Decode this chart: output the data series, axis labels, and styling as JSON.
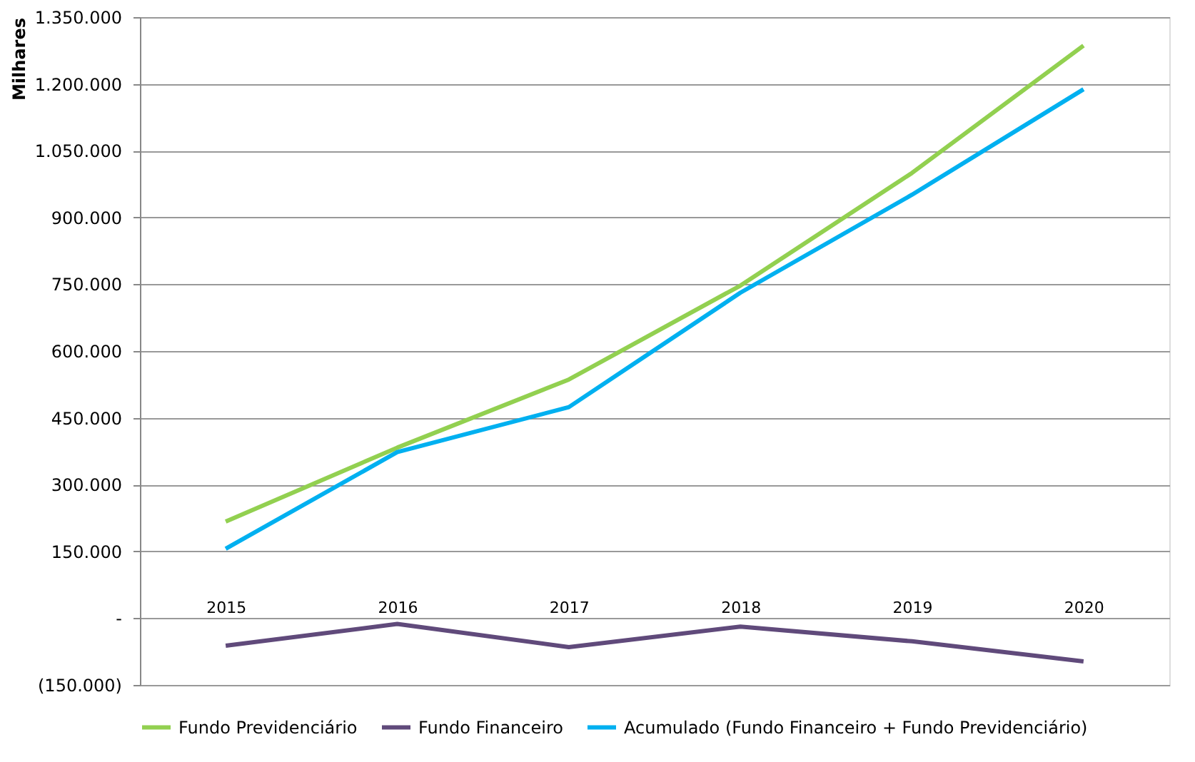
{
  "chart_data": {
    "type": "line",
    "ylabel": "Milhares",
    "categories": [
      "2015",
      "2016",
      "2017",
      "2018",
      "2019",
      "2020"
    ],
    "series": [
      {
        "name": "Fundo Previdenciário",
        "color": "#92d050",
        "values": [
          217000,
          383000,
          536000,
          747000,
          1000000,
          1286000
        ]
      },
      {
        "name": "Fundo Financeiro",
        "color": "#604a7b",
        "values": [
          -62000,
          -13000,
          -65000,
          -19000,
          -52000,
          -97000
        ]
      },
      {
        "name": "Acumulado (Fundo Financeiro + Fundo Previdenciário)",
        "color": "#00b0f0",
        "values": [
          156000,
          373000,
          474000,
          731000,
          951000,
          1188000
        ]
      }
    ],
    "ylim": [
      -150000,
      1350000
    ],
    "yticks": [
      {
        "value": -150000,
        "label": "(150.000)"
      },
      {
        "value": 0,
        "label": "-"
      },
      {
        "value": 150000,
        "label": "150.000"
      },
      {
        "value": 300000,
        "label": "300.000"
      },
      {
        "value": 450000,
        "label": "450.000"
      },
      {
        "value": 600000,
        "label": "600.000"
      },
      {
        "value": 750000,
        "label": "750.000"
      },
      {
        "value": 900000,
        "label": "900.000"
      },
      {
        "value": 1050000,
        "label": "1.050.000"
      },
      {
        "value": 1200000,
        "label": "1.200.000"
      },
      {
        "value": 1350000,
        "label": "1.350.000"
      }
    ],
    "grid": "y",
    "legend": "bottom",
    "marker": "none",
    "line_style": "solid"
  }
}
